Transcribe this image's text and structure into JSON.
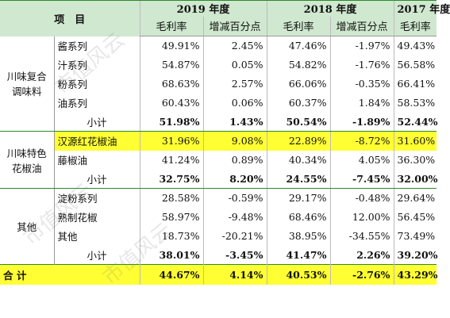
{
  "header": {
    "item_label": "项　目",
    "years": [
      "2019 年度",
      "2018 年度",
      "2017 年度"
    ],
    "col_gross": "毛利率",
    "col_change": "增减百分点"
  },
  "groups": [
    {
      "name": "川味复合调味料",
      "rows": [
        {
          "name": "酱系列",
          "v2019": "49.91%",
          "c2019": "2.45%",
          "v2018": "47.46%",
          "c2018": "-1.97%",
          "v2017": "49.43%"
        },
        {
          "name": "汁系列",
          "v2019": "54.87%",
          "c2019": "0.05%",
          "v2018": "54.82%",
          "c2018": "-1.76%",
          "v2017": "56.58%"
        },
        {
          "name": "粉系列",
          "v2019": "68.63%",
          "c2019": "2.57%",
          "v2018": "66.06%",
          "c2018": "-0.35%",
          "v2017": "66.41%"
        },
        {
          "name": "油系列",
          "v2019": "60.43%",
          "c2019": "0.06%",
          "v2018": "60.37%",
          "c2018": "1.84%",
          "v2017": "58.53%"
        }
      ],
      "subtotal": {
        "name": "小计",
        "v2019": "51.98%",
        "c2019": "1.43%",
        "v2018": "50.54%",
        "c2018": "-1.89%",
        "v2017": "52.44%"
      }
    },
    {
      "name": "川味特色花椒油",
      "rows": [
        {
          "name": "汉源红花椒油",
          "v2019": "31.96%",
          "c2019": "9.08%",
          "v2018": "22.89%",
          "c2018": "-8.72%",
          "v2017": "31.60%"
        },
        {
          "name": "藤椒油",
          "v2019": "41.24%",
          "c2019": "0.89%",
          "v2018": "40.34%",
          "c2018": "4.05%",
          "v2017": "36.30%"
        }
      ],
      "subtotal": {
        "name": "小计",
        "v2019": "32.75%",
        "c2019": "8.20%",
        "v2018": "24.55%",
        "c2018": "-7.45%",
        "v2017": "32.00%"
      }
    },
    {
      "name": "其他",
      "rows": [
        {
          "name": "淀粉系列",
          "v2019": "28.58%",
          "c2019": "-0.59%",
          "v2018": "29.17%",
          "c2018": "-0.48%",
          "v2017": "29.64%"
        },
        {
          "name": "熟制花椒",
          "v2019": "58.97%",
          "c2019": "-9.48%",
          "v2018": "68.46%",
          "c2018": "12.00%",
          "v2017": "56.45%"
        },
        {
          "name": "其他",
          "v2019": "18.73%",
          "c2019": "-20.21%",
          "v2018": "38.95%",
          "c2018": "-34.55%",
          "v2017": "73.49%"
        }
      ],
      "subtotal": {
        "name": "小计",
        "v2019": "38.01%",
        "c2019": "-3.45%",
        "v2018": "41.47%",
        "c2018": "2.26%",
        "v2017": "39.20%"
      }
    }
  ],
  "total": {
    "name": "合 计",
    "v2019": "44.67%",
    "c2019": "4.14%",
    "v2018": "40.53%",
    "c2018": "-2.76%",
    "v2017": "43.29%"
  },
  "watermark": [
    "市值风云",
    "市值风云",
    "市值风云"
  ],
  "colors": {
    "header_bg": "#cfe8cf",
    "highlight": "#ffff33",
    "rule": "#2c8a2c"
  }
}
